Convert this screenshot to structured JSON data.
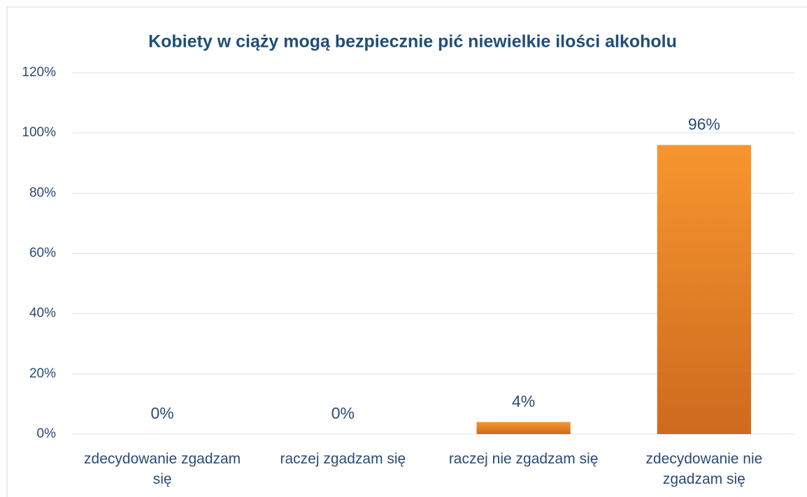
{
  "chart_data": {
    "type": "bar",
    "title": "Kobiety w ciąży mogą bezpiecznie pić niewielkie ilości alkoholu",
    "categories": [
      "zdecydowanie zgadzam się",
      "raczej zgadzam się",
      "raczej nie zgadzam się",
      "zdecydowanie nie zgadzam się"
    ],
    "values": [
      0,
      0,
      4,
      96
    ],
    "value_labels": [
      "0%",
      "0%",
      "4%",
      "96%"
    ],
    "color": "#f7962f",
    "ylim": [
      0,
      120
    ],
    "yticks": [
      {
        "value": 0,
        "label": "0%"
      },
      {
        "value": 20,
        "label": "20%"
      },
      {
        "value": 40,
        "label": "40%"
      },
      {
        "value": 60,
        "label": "60%"
      },
      {
        "value": 80,
        "label": "80%"
      },
      {
        "value": 100,
        "label": "100%"
      },
      {
        "value": 120,
        "label": "120%"
      }
    ],
    "grid": true
  }
}
